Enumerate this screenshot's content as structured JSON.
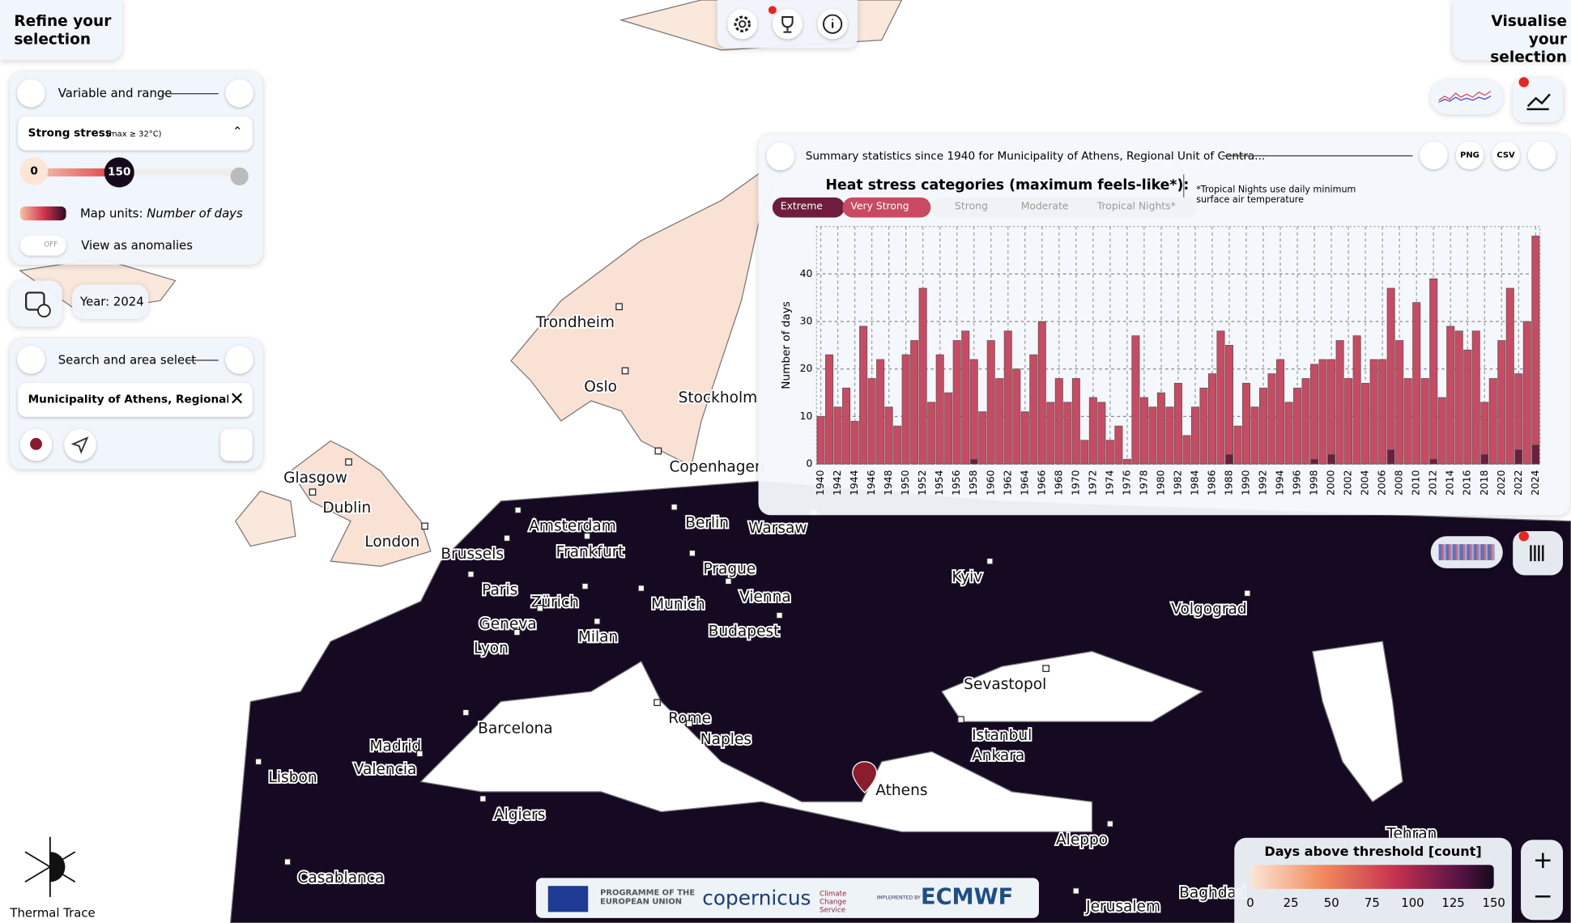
{
  "left_panel": {
    "title": "Refine your selection",
    "variable": {
      "heading": "Variable and range",
      "selected": "Strong stress",
      "selected_note": "(max ≥ 32°C)",
      "range": [
        0,
        150
      ],
      "units_label": "Map units:",
      "units": "Number of days",
      "anomalies_label": "View as anomalies",
      "toggle": "OFF"
    },
    "year": "Year: 2024",
    "search": {
      "heading": "Search and area select",
      "query": "Municipality of Athens, Regional Unit of"
    }
  },
  "right_title": "Visualise your selection",
  "chart_panel": {
    "title": "Summary statistics since 1940 for Municipality of Athens, Regional Unit of Centra...",
    "buttons": [
      "PNG",
      "CSV"
    ],
    "legend_title": "Heat stress categories (maximum feels-like*):",
    "inactive_categories": [
      "Strong",
      "Moderate",
      "Tropical Nights*"
    ],
    "note": "*Tropical Nights use daily minimum surface air temperature"
  },
  "chart_data": {
    "type": "bar",
    "stacked": true,
    "y_label": "Number of days",
    "grid": true,
    "x": [
      1940,
      1941,
      1942,
      1943,
      1944,
      1945,
      1946,
      1947,
      1948,
      1949,
      1950,
      1951,
      1952,
      1953,
      1954,
      1955,
      1956,
      1957,
      1958,
      1959,
      1960,
      1961,
      1962,
      1963,
      1964,
      1965,
      1966,
      1967,
      1968,
      1969,
      1970,
      1971,
      1972,
      1973,
      1974,
      1975,
      1976,
      1977,
      1978,
      1979,
      1980,
      1981,
      1982,
      1983,
      1984,
      1985,
      1986,
      1987,
      1988,
      1989,
      1990,
      1991,
      1992,
      1993,
      1994,
      1995,
      1996,
      1997,
      1998,
      1999,
      2000,
      2001,
      2002,
      2003,
      2004,
      2005,
      2006,
      2007,
      2008,
      2009,
      2010,
      2011,
      2012,
      2013,
      2014,
      2015,
      2016,
      2017,
      2018,
      2019,
      2020,
      2021,
      2022,
      2023,
      2024
    ],
    "xlim": [
      1939.5,
      2024.5
    ],
    "xticks": [
      1940,
      1942,
      1944,
      1946,
      1948,
      1950,
      1952,
      1954,
      1956,
      1958,
      1960,
      1962,
      1964,
      1966,
      1968,
      1970,
      1972,
      1974,
      1976,
      1978,
      1980,
      1982,
      1984,
      1986,
      1988,
      1990,
      1992,
      1994,
      1996,
      1998,
      2000,
      2002,
      2004,
      2006,
      2008,
      2010,
      2012,
      2014,
      2016,
      2018,
      2020,
      2022,
      2024
    ],
    "ylim": [
      0,
      50
    ],
    "yticks": [
      0,
      10,
      20,
      30,
      40
    ],
    "series": [
      {
        "name": "Extreme",
        "color": "#6e1d3c",
        "values": [
          0,
          0,
          0,
          0,
          0,
          0,
          0,
          0,
          0,
          0,
          0,
          0,
          0,
          0,
          0,
          0,
          0,
          0,
          1,
          0,
          0,
          0,
          0,
          0,
          0,
          0,
          0,
          0,
          0,
          0,
          0,
          0,
          0,
          0,
          0,
          0,
          0,
          0,
          0,
          0,
          0,
          0,
          0,
          0,
          0,
          0,
          0,
          0,
          2,
          0,
          0,
          0,
          0,
          0,
          0,
          0,
          0,
          0,
          1,
          0,
          2,
          0,
          0,
          0,
          0,
          0,
          0,
          3,
          0,
          0,
          0,
          0,
          1,
          0,
          0,
          0,
          0,
          0,
          2,
          0,
          0,
          0,
          3,
          0,
          4
        ]
      },
      {
        "name": "Very Strong",
        "color": "#c94a62",
        "values": [
          10,
          23,
          12,
          16,
          9,
          29,
          18,
          22,
          12,
          8,
          23,
          26,
          37,
          13,
          23,
          15,
          26,
          28,
          21,
          11,
          26,
          18,
          28,
          20,
          11,
          23,
          30,
          13,
          18,
          13,
          18,
          5,
          14,
          13,
          5,
          8,
          1,
          27,
          14,
          12,
          15,
          12,
          17,
          6,
          12,
          16,
          19,
          28,
          23,
          8,
          17,
          12,
          16,
          19,
          22,
          13,
          16,
          18,
          20,
          22,
          20,
          26,
          18,
          27,
          17,
          22,
          22,
          34,
          26,
          18,
          34,
          18,
          38,
          14,
          29,
          28,
          24,
          28,
          11,
          18,
          26,
          37,
          16,
          30,
          44
        ]
      }
    ]
  },
  "map": {
    "cities": [
      "Trondheim",
      "Oslo",
      "Stockholm",
      "Copenhagen",
      "Glasgow",
      "Dublin",
      "London",
      "Amsterdam",
      "Berlin",
      "Warsaw",
      "Brussels",
      "Frankfurt",
      "Prague",
      "Kyiv",
      "Paris",
      "Zürich",
      "Munich",
      "Vienna",
      "Volgograd",
      "Geneva",
      "Milan",
      "Budapest",
      "Lyon",
      "Sevastopol",
      "Rome",
      "Barcelona",
      "Naples",
      "Istanbul",
      "Madrid",
      "Ankara",
      "Valencia",
      "Lisbon",
      "Athens",
      "Algiers",
      "Aleppo",
      "Casablanca",
      "Jerusalem",
      "Tehran",
      "Baghdad"
    ],
    "legend": {
      "title": "Days above threshold [count]",
      "ticks": [
        0,
        25,
        50,
        75,
        100,
        125,
        150
      ]
    }
  },
  "footer": {
    "brand": "Thermal Trace",
    "logos": [
      "PROGRAMME OF THE EUROPEAN UNION",
      "copernicus",
      "Climate Change Service",
      "IMPLEMENTED BY",
      "ECMWF"
    ]
  }
}
